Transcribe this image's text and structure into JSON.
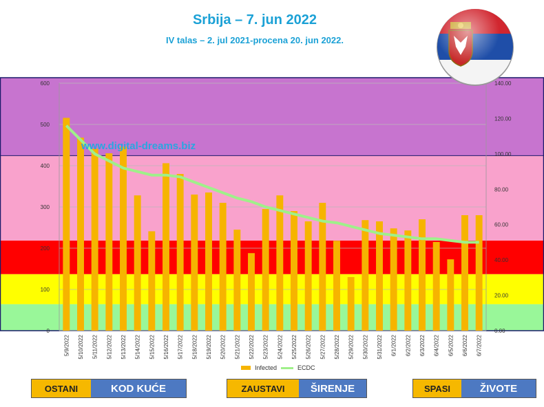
{
  "title": "Srbija – 7. jun 2022",
  "subtitle": "IV talas – 2. jul 2021-procena 20. jun 2022.",
  "watermark": "www.digital-dreams.biz",
  "slogans": [
    {
      "left": "OSTANI",
      "right": "KOD KUĆE"
    },
    {
      "left": "ZAUSTAVI",
      "right": "ŠIRENJE"
    },
    {
      "left": "SPASI",
      "right": "ŽIVOTE"
    }
  ],
  "colors": {
    "bar": "#f6b400",
    "line": "#9ff08a",
    "band_purple": "#c774cf",
    "band_pink": "#f9a2cc",
    "band_red": "#ff0000",
    "band_yellow": "#ffff00",
    "band_green": "#99f799"
  },
  "chart_data": {
    "type": "bar",
    "categories": [
      "5/9/2022",
      "5/10/2022",
      "5/11/2022",
      "5/12/2022",
      "5/13/2022",
      "5/14/2022",
      "5/15/2022",
      "5/16/2022",
      "5/17/2022",
      "5/18/2022",
      "5/19/2022",
      "5/20/2022",
      "5/21/2022",
      "5/22/2022",
      "5/23/2022",
      "5/24/2022",
      "5/25/2022",
      "5/26/2022",
      "5/27/2022",
      "5/28/2022",
      "5/29/2022",
      "5/30/2022",
      "5/31/2022",
      "6/1/2022",
      "6/2/2022",
      "6/3/2022",
      "6/4/2022",
      "6/5/2022",
      "6/6/2022",
      "6/7/2022"
    ],
    "series": [
      {
        "name": "Infected",
        "axis": "left",
        "values": [
          516,
          468,
          441,
          430,
          446,
          328,
          241,
          406,
          380,
          330,
          335,
          310,
          245,
          188,
          295,
          328,
          290,
          265,
          310,
          218,
          130,
          268,
          265,
          248,
          243,
          270,
          215,
          173,
          280,
          280
        ]
      },
      {
        "name": "ECDC",
        "axis": "right",
        "values": [
          116,
          108,
          100,
          96,
          92,
          90,
          88,
          88,
          87,
          84,
          81,
          78,
          75,
          73,
          70,
          68,
          66,
          64,
          62,
          61,
          59,
          57,
          55,
          54,
          53,
          52,
          52,
          51,
          50,
          50
        ]
      }
    ],
    "y_left_ticks": [
      "0",
      "100",
      "200",
      "300",
      "400",
      "500",
      "600"
    ],
    "y_right_ticks": [
      "0.00",
      "20.00",
      "40.00",
      "60.00",
      "80.00",
      "100.00",
      "120.00",
      "140.00"
    ],
    "ylim_left": [
      0,
      600
    ],
    "ylim_right": [
      0,
      140
    ],
    "bands_right": [
      {
        "from": 0,
        "to": 15,
        "color": "band_green"
      },
      {
        "from": 15,
        "to": 32,
        "color": "band_yellow"
      },
      {
        "from": 32,
        "to": 51,
        "color": "band_red"
      },
      {
        "from": 51,
        "to": 99,
        "color": "band_pink"
      },
      {
        "from": 99,
        "to": 140,
        "color": "band_purple"
      }
    ],
    "legend_position": "bottom"
  }
}
